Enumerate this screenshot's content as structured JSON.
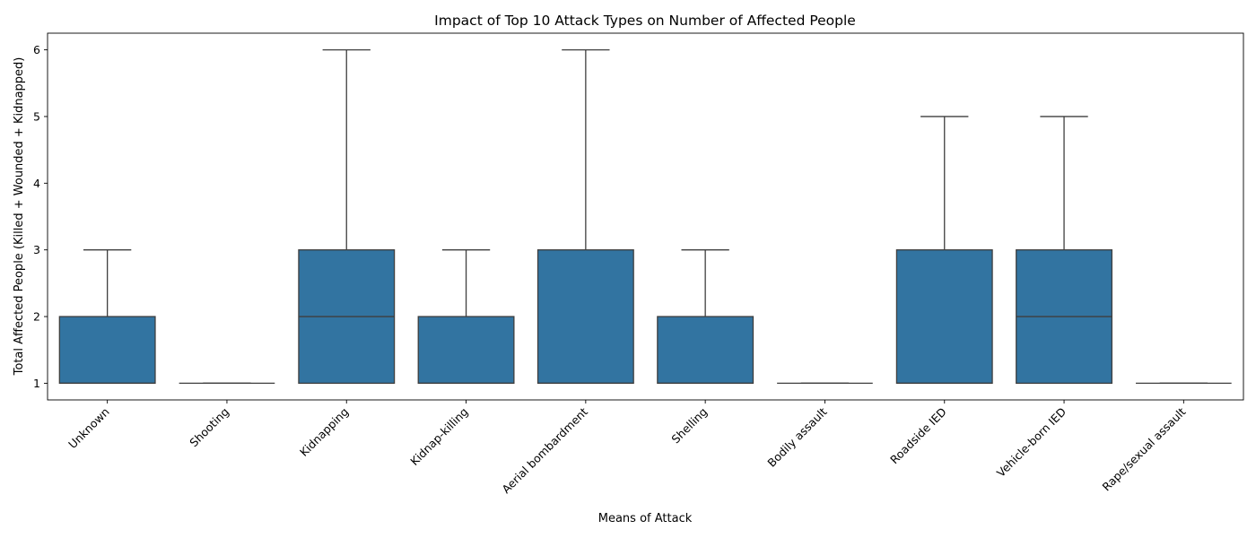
{
  "chart_data": {
    "type": "box",
    "title": "Impact of Top 10 Attack Types on Number of Affected People",
    "xlabel": "Means of Attack",
    "ylabel": "Total Affected People (Killed + Wounded + Kidnapped)",
    "ylim": [
      0.75,
      6.25
    ],
    "yticks": [
      1,
      2,
      3,
      4,
      5,
      6
    ],
    "grid": false,
    "legend": "none",
    "box_color": "#3274a1",
    "line_color": "#3f3f3f",
    "categories": [
      "Unknown",
      "Shooting",
      "Kidnapping",
      "Kidnap-killing",
      "Aerial bombardment",
      "Shelling",
      "Bodily assault",
      "Roadside IED",
      "Vehicle-born IED",
      "Rape/sexual assault"
    ],
    "boxes": [
      {
        "category": "Unknown",
        "whisker_low": 1,
        "q1": 1,
        "median": 1,
        "q3": 2,
        "whisker_high": 3
      },
      {
        "category": "Shooting",
        "whisker_low": 1,
        "q1": 1,
        "median": 1,
        "q3": 1,
        "whisker_high": 1
      },
      {
        "category": "Kidnapping",
        "whisker_low": 1,
        "q1": 1,
        "median": 2,
        "q3": 3,
        "whisker_high": 6
      },
      {
        "category": "Kidnap-killing",
        "whisker_low": 1,
        "q1": 1,
        "median": 1,
        "q3": 2,
        "whisker_high": 3
      },
      {
        "category": "Aerial bombardment",
        "whisker_low": 1,
        "q1": 1,
        "median": 1,
        "q3": 3,
        "whisker_high": 6
      },
      {
        "category": "Shelling",
        "whisker_low": 1,
        "q1": 1,
        "median": 1,
        "q3": 2,
        "whisker_high": 3
      },
      {
        "category": "Bodily assault",
        "whisker_low": 1,
        "q1": 1,
        "median": 1,
        "q3": 1,
        "whisker_high": 1
      },
      {
        "category": "Roadside IED",
        "whisker_low": 1,
        "q1": 1,
        "median": 1,
        "q3": 3,
        "whisker_high": 5
      },
      {
        "category": "Vehicle-born IED",
        "whisker_low": 1,
        "q1": 1,
        "median": 2,
        "q3": 3,
        "whisker_high": 5
      },
      {
        "category": "Rape/sexual assault",
        "whisker_low": 1,
        "q1": 1,
        "median": 1,
        "q3": 1,
        "whisker_high": 1
      }
    ]
  }
}
